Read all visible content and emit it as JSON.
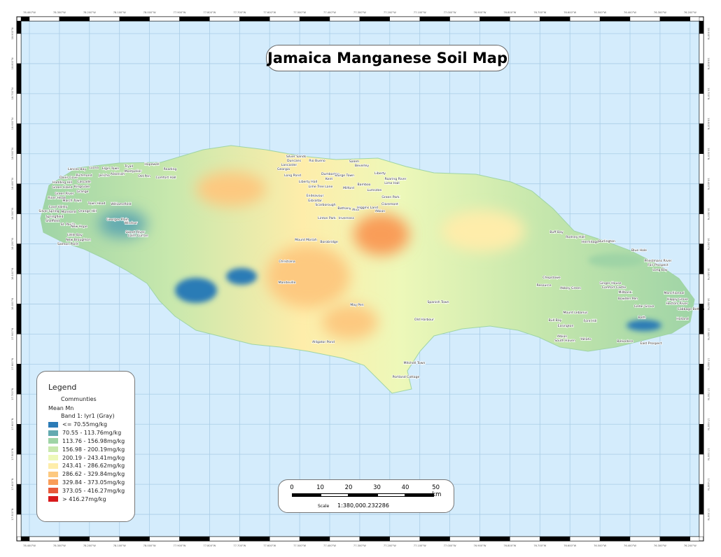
{
  "title": "Jamaica Manganese Soil Map",
  "colors": {
    "sea": "#d4ecfc",
    "grid": "#a9cde6",
    "classes": [
      "#2c7bb6",
      "#63aab0",
      "#9fd4a6",
      "#c8e8ad",
      "#edf8b9",
      "#feedaa",
      "#fdc980",
      "#f99d59",
      "#e85a3a",
      "#d7191c"
    ]
  },
  "legend": {
    "title": "Legend",
    "communities_label": "Communties",
    "layer_label": "Mean Mn",
    "band_label": "Band 1: lyr1 (Gray)",
    "classes": [
      "<= 70.55mg/kg",
      "70.55 - 113.76mg/kg",
      "113.76 - 156.98mg/kg",
      "156.98 - 200.19mg/kg",
      "200.19 - 243.41mg/kg",
      "243.41 - 286.62mg/kg",
      "286.62 - 329.84mg/kg",
      "329.84 - 373.05mg/kg",
      "373.05 - 416.27mg/kg",
      "> 416.27mg/kg"
    ]
  },
  "scale_bar": {
    "ticks": [
      "0",
      "10",
      "20",
      "30",
      "40",
      "50 km"
    ],
    "scale_label": "Scale",
    "scale_value": "1:380,000.232286"
  },
  "graticule": {
    "lon_labels": [
      "78.400°W",
      "78.300°W",
      "78.200°W",
      "78.100°W",
      "78.000°W",
      "77.900°W",
      "77.800°W",
      "77.700°W",
      "77.600°W",
      "77.500°W",
      "77.400°W",
      "77.300°W",
      "77.200°W",
      "77.100°W",
      "77.000°W",
      "76.900°W",
      "76.800°W",
      "76.700°W",
      "76.600°W",
      "76.500°W",
      "76.400°W",
      "76.300°W",
      "76.200°W"
    ],
    "lat_labels": [
      "18.900°N",
      "18.800°N",
      "18.700°N",
      "18.600°N",
      "18.500°N",
      "18.400°N",
      "18.300°N",
      "18.200°N",
      "18.100°N",
      "18.000°N",
      "17.900°N",
      "17.800°N",
      "17.700°N",
      "17.600°N",
      "17.500°N",
      "17.400°N",
      "17.300°N"
    ]
  },
  "communities": [
    "Lances Bay",
    "Lucea",
    "Elgin Town",
    "Tryall",
    "Hopewell",
    "Reading",
    "Davis Cove",
    "Richmond",
    "Jericho",
    "Askenish",
    "Montpelier",
    "Old Pen",
    "Comfort Hall",
    "Hadding Hill",
    "Cascade",
    "Green Island",
    "Kingsvale",
    "Grange",
    "Green River",
    "March Town",
    "River Head",
    "Town Head",
    "Williamsfield",
    "Cave Valley",
    "Moreland",
    "Orange Hill",
    "Silver Spring",
    "Springfield",
    "Sheffield",
    "St. Paul's",
    "New Hope",
    "Georges Plain",
    "Windsor",
    "Little Bay",
    "New Broughton",
    "Salmon Point",
    "Sweet River",
    "Cairn Curran",
    "Silver Sands",
    "Duncans",
    "Rio Bueno",
    "Lancaster",
    "Salem",
    "Georgia",
    "Long Pond",
    "Dumbarton",
    "Sturge Town",
    "Kent",
    "Bamboo",
    "Liberty Hall",
    "Lime Tree Lane",
    "Milford",
    "Lumsden",
    "Endeavour",
    "Gibraltar",
    "Scarborough",
    "Bethany",
    "Alva",
    "Higgins Land",
    "Albion",
    "Linton Park",
    "Inverness",
    "Claremont",
    "Green Park",
    "Liberty",
    "Beverley",
    "Lime Hall",
    "Roaring River",
    "Borobridge",
    "Mount Moriah",
    "Buff Bay",
    "Rodney Hall",
    "Burlington",
    "Hermitage",
    "Blue Hole",
    "Priestmans River",
    "Fair Prospect",
    "Long Bay",
    "Manchioneal",
    "Happy Grove",
    "Hectors River",
    "Cabbage Bottom",
    "Holland",
    "Bath",
    "Easington",
    "Yallahs",
    "Albion",
    "South Haven",
    "Belvedere",
    "East Prospect",
    "Ginger House",
    "Comfort Castle",
    "Millbank",
    "Bowden Pen",
    "Chepstowe",
    "Resource",
    "Abbey Green",
    "Cedar Grove",
    "Mount Lebanus",
    "Font Hill",
    "Bull Bay",
    "Spanish Town",
    "Old Harbour",
    "May Pen",
    "Mandeville",
    "Christiana",
    "Alligator Pond",
    "Mitchell Town",
    "Portland Cottage"
  ]
}
